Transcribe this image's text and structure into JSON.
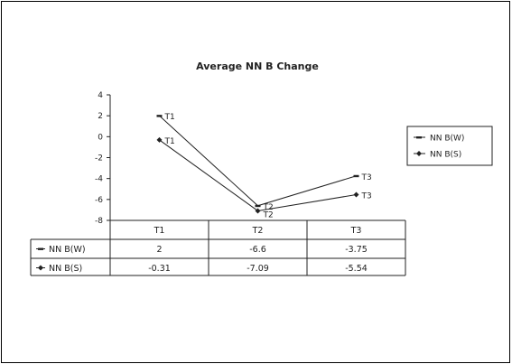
{
  "chart_data": {
    "type": "line",
    "title": "Average NN B Change",
    "categories": [
      "T1",
      "T2",
      "T3"
    ],
    "series": [
      {
        "name": "NN B(W)",
        "values": [
          2,
          -6.6,
          -3.75
        ],
        "marker": "dash",
        "point_labels": [
          "T1",
          "T2",
          "T3"
        ]
      },
      {
        "name": "NN B(S)",
        "values": [
          -0.31,
          -7.09,
          -5.54
        ],
        "marker": "diamond",
        "point_labels": [
          "T1",
          "T2",
          "T3"
        ]
      }
    ],
    "table": {
      "headers": [
        "T1",
        "T2",
        "T3"
      ],
      "rows": [
        {
          "label": "NN B(W)",
          "cells": [
            "2",
            "-6.6",
            "-3.75"
          ]
        },
        {
          "label": "NN B(S)",
          "cells": [
            "-0.31",
            "-7.09",
            "-5.54"
          ]
        }
      ]
    },
    "yticks": [
      "4",
      "2",
      "0",
      "-2",
      "-4",
      "-6",
      "-8"
    ],
    "ylim": [
      -8,
      4
    ],
    "legend": [
      "NN B(W)",
      "NN B(S)"
    ],
    "legend_position": "right",
    "grid": false,
    "colors": {
      "line": "#222222",
      "background": "#ffffff"
    }
  }
}
